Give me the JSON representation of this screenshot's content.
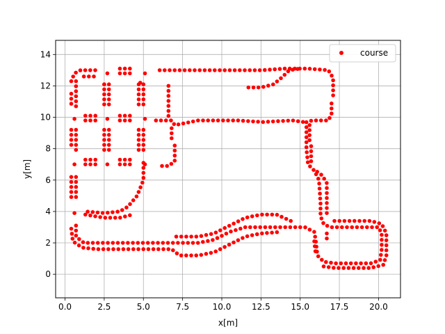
{
  "chart_data": {
    "type": "scatter",
    "title": "",
    "xlabel": "x[m]",
    "ylabel": "y[m]",
    "xlim": [
      -0.6,
      21.4
    ],
    "ylim": [
      -1.5,
      14.9
    ],
    "xticks": [
      0.0,
      2.5,
      5.0,
      7.5,
      10.0,
      12.5,
      15.0,
      17.5,
      20.0
    ],
    "xtick_labels": [
      "0.0",
      "2.5",
      "5.0",
      "7.5",
      "10.0",
      "12.5",
      "15.0",
      "17.5",
      "20.0"
    ],
    "yticks": [
      0,
      2,
      4,
      6,
      8,
      10,
      12,
      14
    ],
    "ytick_labels": [
      "0",
      "2",
      "4",
      "6",
      "8",
      "10",
      "12",
      "14"
    ],
    "grid": true,
    "legend_position": "top-right",
    "series": [
      {
        "name": "course",
        "color": "#ff0000",
        "marker": "circle",
        "polylines": [
          [
            [
              0.7,
              12.3
            ],
            [
              0.7,
              10.6
            ]
          ],
          [
            [
              0.7,
              9.2
            ],
            [
              0.7,
              7.9
            ]
          ],
          [
            [
              0.7,
              6.2
            ],
            [
              0.7,
              4.7
            ]
          ],
          [
            [
              0.7,
              3.1
            ],
            [
              0.7,
              2.4
            ],
            [
              1.2,
              2.0
            ],
            [
              2.0,
              2.0
            ],
            [
              5.0,
              2.0
            ],
            [
              7.3,
              2.0
            ],
            [
              8.5,
              2.0
            ],
            [
              9.5,
              2.2
            ],
            [
              10.5,
              2.7
            ],
            [
              11.5,
              3.0
            ],
            [
              12.5,
              3.0
            ],
            [
              15.3,
              3.0
            ],
            [
              15.9,
              2.7
            ],
            [
              16.0,
              2.1
            ],
            [
              16.1,
              1.2
            ],
            [
              16.5,
              0.8
            ],
            [
              17.2,
              0.7
            ],
            [
              19.5,
              0.7
            ],
            [
              20.1,
              0.9
            ],
            [
              20.2,
              1.6
            ],
            [
              20.2,
              2.6
            ],
            [
              20.0,
              3.0
            ],
            [
              19.5,
              3.0
            ],
            [
              17.5,
              3.0
            ],
            [
              16.9,
              3.0
            ],
            [
              16.5,
              3.2
            ],
            [
              16.3,
              3.7
            ],
            [
              16.3,
              4.5
            ],
            [
              16.2,
              6.0
            ],
            [
              15.9,
              6.6
            ],
            [
              15.5,
              7.0
            ],
            [
              15.4,
              8.0
            ],
            [
              15.4,
              9.7
            ],
            [
              15.8,
              9.8
            ],
            [
              16.8,
              9.8
            ],
            [
              17.0,
              10.2
            ],
            [
              17.0,
              11.0
            ]
          ],
          [
            [
              17.1,
              11.4
            ],
            [
              17.1,
              12.5
            ],
            [
              16.8,
              13.0
            ],
            [
              15.5,
              13.1
            ],
            [
              14.0,
              13.1
            ],
            [
              12.6,
              13.0
            ],
            [
              10.0,
              13.0
            ],
            [
              7.0,
              13.0
            ],
            [
              6.0,
              13.0
            ]
          ],
          [
            [
              6.6,
              12.0
            ],
            [
              6.6,
              10.0
            ]
          ],
          [
            [
              5.8,
              9.8
            ],
            [
              6.8,
              9.8
            ],
            [
              7.0,
              9.5
            ],
            [
              8.5,
              9.8
            ],
            [
              11.0,
              9.8
            ],
            [
              12.6,
              9.7
            ],
            [
              14.5,
              9.8
            ],
            [
              15.2,
              9.7
            ]
          ],
          [
            [
              6.8,
              9.3
            ],
            [
              6.8,
              8.5
            ]
          ],
          [
            [
              7.0,
              8.2
            ],
            [
              7.0,
              7.2
            ],
            [
              6.6,
              6.9
            ],
            [
              5.9,
              6.9
            ]
          ],
          [
            [
              5.0,
              7.1
            ],
            [
              5.0,
              6.0
            ],
            [
              4.6,
              5.0
            ],
            [
              4.0,
              4.3
            ],
            [
              3.5,
              4.0
            ],
            [
              2.5,
              3.9
            ],
            [
              1.3,
              4.0
            ]
          ],
          [
            [
              0.4,
              2.9
            ],
            [
              0.5,
              2.1
            ],
            [
              1.1,
              1.7
            ],
            [
              2.0,
              1.6
            ],
            [
              5.0,
              1.6
            ],
            [
              6.8,
              1.6
            ],
            [
              7.3,
              1.2
            ],
            [
              8.5,
              1.2
            ],
            [
              9.5,
              1.4
            ],
            [
              10.5,
              1.9
            ],
            [
              11.5,
              2.4
            ],
            [
              12.5,
              2.6
            ],
            [
              13.8,
              2.7
            ]
          ],
          [
            [
              15.9,
              2.1
            ],
            [
              16.0,
              1.2
            ]
          ],
          [
            [
              16.5,
              0.5
            ],
            [
              17.2,
              0.4
            ],
            [
              19.5,
              0.4
            ],
            [
              20.3,
              0.6
            ],
            [
              20.5,
              1.2
            ],
            [
              20.5,
              2.6
            ],
            [
              20.2,
              3.2
            ],
            [
              19.5,
              3.4
            ],
            [
              17.5,
              3.4
            ],
            [
              16.9,
              3.4
            ]
          ],
          [
            [
              16.7,
              2.6
            ],
            [
              16.7,
              2.0
            ]
          ],
          [
            [
              16.7,
              3.9
            ],
            [
              16.7,
              5.8
            ],
            [
              16.4,
              6.3
            ],
            [
              16.0,
              6.6
            ]
          ],
          [
            [
              15.7,
              7.2
            ],
            [
              15.7,
              8.2
            ]
          ],
          [
            [
              15.6,
              9.5
            ],
            [
              15.6,
              8.5
            ]
          ],
          [
            [
              14.4,
              3.4
            ],
            [
              13.5,
              3.8
            ],
            [
              12.5,
              3.8
            ],
            [
              11.5,
              3.6
            ],
            [
              10.5,
              3.1
            ],
            [
              9.5,
              2.6
            ],
            [
              8.5,
              2.4
            ],
            [
              7.5,
              2.4
            ],
            [
              7.0,
              2.4
            ]
          ],
          [
            [
              1.3,
              3.8
            ],
            [
              2.5,
              3.6
            ],
            [
              3.5,
              3.6
            ],
            [
              4.3,
              3.8
            ]
          ],
          [
            [
              0.4,
              12.3
            ],
            [
              0.6,
              12.8
            ],
            [
              1.0,
              13.0
            ],
            [
              2.0,
              13.0
            ]
          ],
          [
            [
              1.2,
              12.6
            ],
            [
              2.0,
              12.6
            ]
          ],
          [
            [
              0.4,
              11.5
            ],
            [
              0.4,
              10.6
            ]
          ],
          [
            [
              0.4,
              9.2
            ],
            [
              0.4,
              8.0
            ]
          ],
          [
            [
              0.4,
              6.2
            ],
            [
              0.4,
              4.7
            ]
          ],
          [
            [
              1.3,
              10.1
            ],
            [
              2.1,
              10.1
            ]
          ],
          [
            [
              1.3,
              9.8
            ],
            [
              2.1,
              9.8
            ]
          ],
          [
            [
              1.3,
              7.3
            ],
            [
              2.1,
              7.3
            ]
          ],
          [
            [
              1.3,
              7.0
            ],
            [
              2.1,
              7.0
            ]
          ],
          [
            [
              2.5,
              12.1
            ],
            [
              2.5,
              10.8
            ]
          ],
          [
            [
              2.8,
              12.1
            ],
            [
              2.8,
              10.8
            ]
          ],
          [
            [
              2.5,
              9.2
            ],
            [
              2.5,
              7.8
            ]
          ],
          [
            [
              2.8,
              9.2
            ],
            [
              2.8,
              7.8
            ]
          ],
          [
            [
              3.5,
              13.1
            ],
            [
              4.3,
              13.1
            ]
          ],
          [
            [
              3.5,
              12.8
            ],
            [
              4.3,
              12.8
            ]
          ],
          [
            [
              3.5,
              10.1
            ],
            [
              4.3,
              10.1
            ]
          ],
          [
            [
              3.5,
              9.8
            ],
            [
              4.3,
              9.8
            ]
          ],
          [
            [
              3.5,
              7.3
            ],
            [
              4.3,
              7.3
            ]
          ],
          [
            [
              3.5,
              7.0
            ],
            [
              4.3,
              7.0
            ]
          ],
          [
            [
              4.7,
              12.1
            ],
            [
              4.7,
              10.7
            ]
          ],
          [
            [
              5.0,
              12.1
            ],
            [
              5.0,
              10.7
            ]
          ],
          [
            [
              4.7,
              9.2
            ],
            [
              4.7,
              7.9
            ]
          ],
          [
            [
              5.0,
              9.2
            ],
            [
              5.0,
              7.9
            ]
          ],
          [
            [
              11.7,
              11.9
            ],
            [
              12.5,
              11.9
            ],
            [
              13.3,
              12.1
            ],
            [
              13.9,
              12.6
            ],
            [
              14.3,
              13.0
            ],
            [
              15.0,
              13.1
            ]
          ]
        ],
        "points": [
          [
            0.6,
            9.9
          ],
          [
            0.6,
            7.0
          ],
          [
            0.6,
            3.9
          ],
          [
            2.7,
            12.8
          ],
          [
            2.7,
            9.9
          ],
          [
            2.7,
            7.0
          ],
          [
            5.1,
            12.8
          ],
          [
            5.1,
            9.9
          ],
          [
            5.1,
            7.0
          ],
          [
            2.5,
            12.1
          ],
          [
            4.8,
            12.2
          ]
        ]
      }
    ]
  }
}
